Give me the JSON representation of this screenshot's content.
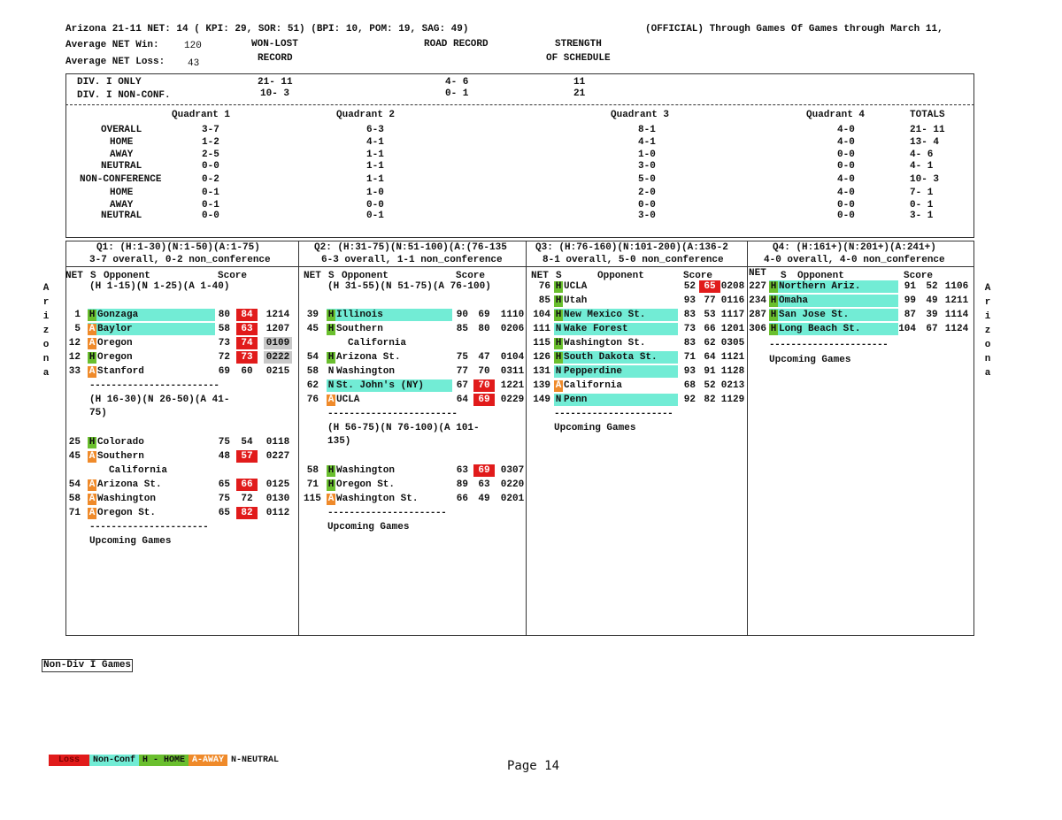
{
  "header": {
    "line1": "Arizona 21-11  NET: 14 ( KPI: 29, SOR: 51)  (BPI: 10, POM: 19,  SAG: 49)",
    "official": "(OFFICIAL) Through Games Of Games through March 11,",
    "avg_win_label": "Average NET Win:",
    "avg_win": "120",
    "avg_loss_label": "Average NET Loss:",
    "avg_loss": "43",
    "won_lost_1": "WON-LOST",
    "won_lost_2": "RECORD",
    "road_record": "ROAD RECORD",
    "sos_1": "STRENGTH",
    "sos_2": "OF SCHEDULE"
  },
  "records": {
    "div1_label": "DIV. I ONLY",
    "div1_wl": "21- 11",
    "div1_road": "4- 6",
    "div1_sos": "11",
    "nonconf_label": "DIV. I NON-CONF.",
    "nonconf_wl": "10- 3",
    "nonconf_road": "0- 1",
    "nonconf_sos": "21"
  },
  "quad_table": {
    "headers": [
      "Quadrant 1",
      "Quadrant 2",
      "Quadrant 3",
      "Quadrant 4",
      "TOTALS"
    ],
    "rows": [
      {
        "label": "OVERALL",
        "q1": "3-7",
        "q2": "6-3",
        "q3": "8-1",
        "q4": "4-0",
        "total": "21- 11"
      },
      {
        "label": "HOME",
        "q1": "1-2",
        "q2": "4-1",
        "q3": "4-1",
        "q4": "4-0",
        "total": "13- 4"
      },
      {
        "label": "AWAY",
        "q1": "2-5",
        "q2": "1-1",
        "q3": "1-0",
        "q4": "0-0",
        "total": "4- 6"
      },
      {
        "label": "NEUTRAL",
        "q1": "0-0",
        "q2": "1-1",
        "q3": "3-0",
        "q4": "0-0",
        "total": "4- 1"
      },
      {
        "label": "NON-CONFERENCE",
        "q1": "0-2",
        "q2": "1-1",
        "q3": "5-0",
        "q4": "4-0",
        "total": "10- 3"
      },
      {
        "label": "HOME",
        "q1": "0-1",
        "q2": "1-0",
        "q3": "2-0",
        "q4": "4-0",
        "total": "7- 1"
      },
      {
        "label": "AWAY",
        "q1": "0-1",
        "q2": "0-0",
        "q3": "0-0",
        "q4": "0-0",
        "total": "0- 1"
      },
      {
        "label": "NEUTRAL",
        "q1": "0-0",
        "q2": "0-1",
        "q3": "3-0",
        "q4": "0-0",
        "total": "3- 1"
      }
    ]
  },
  "columns_header": {
    "net": "NET",
    "s": "S",
    "opponent": "Opponent",
    "score": "Score"
  },
  "q1": {
    "title": "Q1: (H:1-30)(N:1-50)(A:1-75)",
    "summary": "3-7 overall, 0-2 non_conference",
    "sub1": "(H 1-15)(N 1-25)(A 1-40)",
    "sub2a": "(H 16-30)(N 26-50)(A 41-",
    "sub2b": "75)",
    "upcoming": "Upcoming Games",
    "games_a": [
      {
        "net": "1",
        "loc": "H",
        "opp": "Gonzaga",
        "s1": "80",
        "s2": "84",
        "date": "1214",
        "loss": true,
        "nc": true,
        "gray": false
      },
      {
        "net": "5",
        "loc": "A",
        "opp": "Baylor",
        "s1": "58",
        "s2": "63",
        "date": "1207",
        "loss": true,
        "nc": true,
        "gray": false
      },
      {
        "net": "12",
        "loc": "A",
        "opp": "Oregon",
        "s1": "73",
        "s2": "74",
        "date": "0109",
        "loss": true,
        "nc": false,
        "gray": true
      },
      {
        "net": "12",
        "loc": "H",
        "opp": "Oregon",
        "s1": "72",
        "s2": "73",
        "date": "0222",
        "loss": true,
        "nc": false,
        "gray": true
      },
      {
        "net": "33",
        "loc": "A",
        "opp": "Stanford",
        "s1": "69",
        "s2": "60",
        "date": "0215",
        "loss": false,
        "nc": false,
        "gray": false
      }
    ],
    "games_b": [
      {
        "net": "25",
        "loc": "H",
        "opp": "Colorado",
        "s1": "75",
        "s2": "54",
        "date": "0118",
        "loss": false
      },
      {
        "net": "45",
        "loc": "A",
        "opp": "Southern",
        "opp2": "California",
        "s1": "48",
        "s2": "57",
        "date": "0227",
        "loss": true
      },
      {
        "net": "54",
        "loc": "A",
        "opp": "Arizona St.",
        "s1": "65",
        "s2": "66",
        "date": "0125",
        "loss": true
      },
      {
        "net": "58",
        "loc": "A",
        "opp": "Washington",
        "s1": "75",
        "s2": "72",
        "date": "0130",
        "loss": false
      },
      {
        "net": "71",
        "loc": "A",
        "opp": "Oregon St.",
        "s1": "65",
        "s2": "82",
        "date": "0112",
        "loss": true
      }
    ]
  },
  "q2": {
    "title": "Q2: (H:31-75)(N:51-100)(A:(76-135",
    "summary": "6-3 overall, 1-1 non_conference",
    "sub1": "(H 31-55)(N 51-75)(A 76-100)",
    "sub2a": "(H 56-75)(N 76-100)(A 101-",
    "sub2b": "135)",
    "upcoming": "Upcoming Games",
    "games_a": [
      {
        "net": "39",
        "loc": "H",
        "opp": "Illinois",
        "s1": "90",
        "s2": "69",
        "date": "1110",
        "loss": false,
        "nc": true
      },
      {
        "net": "45",
        "loc": "H",
        "opp": "Southern",
        "opp2": "California",
        "s1": "85",
        "s2": "80",
        "date": "0206",
        "loss": false,
        "nc": false
      },
      {
        "net": "54",
        "loc": "H",
        "opp": "Arizona St.",
        "s1": "75",
        "s2": "47",
        "date": "0104",
        "loss": false,
        "nc": false
      },
      {
        "net": "58",
        "loc": "N",
        "opp": "Washington",
        "s1": "77",
        "s2": "70",
        "date": "0311",
        "loss": false,
        "nc": false
      },
      {
        "net": "62",
        "loc": "N",
        "opp": "St. John's (NY)",
        "s1": "67",
        "s2": "70",
        "date": "1221",
        "loss": true,
        "nc": true
      },
      {
        "net": "76",
        "loc": "A",
        "opp": "UCLA",
        "s1": "64",
        "s2": "69",
        "date": "0229",
        "loss": true,
        "nc": false
      }
    ],
    "games_b": [
      {
        "net": "58",
        "loc": "H",
        "opp": "Washington",
        "s1": "63",
        "s2": "69",
        "date": "0307",
        "loss": true
      },
      {
        "net": "71",
        "loc": "H",
        "opp": "Oregon St.",
        "s1": "89",
        "s2": "63",
        "date": "0220",
        "loss": false
      },
      {
        "net": "115",
        "loc": "A",
        "opp": "Washington St.",
        "s1": "66",
        "s2": "49",
        "date": "0201",
        "loss": false
      }
    ]
  },
  "q3": {
    "title": "Q3: (H:76-160)(N:101-200)(A:136-2",
    "summary": "8-1 overall, 5-0 non_conference",
    "upcoming": "Upcoming Games",
    "games": [
      {
        "net": "76",
        "loc": "H",
        "opp": "UCLA",
        "s1": "52",
        "s2": "65",
        "date": "0208",
        "loss": true,
        "nc": false
      },
      {
        "net": "85",
        "loc": "H",
        "opp": "Utah",
        "s1": "93",
        "s2": "77",
        "date": "0116",
        "loss": false,
        "nc": false
      },
      {
        "net": "104",
        "loc": "H",
        "opp": "New Mexico St.",
        "s1": "83",
        "s2": "53",
        "date": "1117",
        "loss": false,
        "nc": true
      },
      {
        "net": "111",
        "loc": "N",
        "opp": "Wake Forest",
        "s1": "73",
        "s2": "66",
        "date": "1201",
        "loss": false,
        "nc": true
      },
      {
        "net": "115",
        "loc": "H",
        "opp": "Washington St.",
        "s1": "83",
        "s2": "62",
        "date": "0305",
        "loss": false,
        "nc": false
      },
      {
        "net": "126",
        "loc": "H",
        "opp": "South Dakota St.",
        "s1": "71",
        "s2": "64",
        "date": "1121",
        "loss": false,
        "nc": true
      },
      {
        "net": "131",
        "loc": "N",
        "opp": "Pepperdine",
        "s1": "93",
        "s2": "91",
        "date": "1128",
        "loss": false,
        "nc": true
      },
      {
        "net": "139",
        "loc": "A",
        "opp": "California",
        "s1": "68",
        "s2": "52",
        "date": "0213",
        "loss": false,
        "nc": false
      },
      {
        "net": "149",
        "loc": "N",
        "opp": "Penn",
        "s1": "92",
        "s2": "82",
        "date": "1129",
        "loss": false,
        "nc": true
      }
    ]
  },
  "q4": {
    "title": "Q4: (H:161+)(N:201+)(A:241+)",
    "summary": "4-0 overall, 4-0 non_conference",
    "upcoming": "Upcoming Games",
    "games": [
      {
        "net": "227",
        "loc": "H",
        "opp": "Northern Ariz.",
        "s1": "91",
        "s2": "52",
        "date": "1106",
        "loss": false,
        "nc": true
      },
      {
        "net": "234",
        "loc": "H",
        "opp": "Omaha",
        "s1": "99",
        "s2": "49",
        "date": "1211",
        "loss": false,
        "nc": true
      },
      {
        "net": "287",
        "loc": "H",
        "opp": "San Jose St.",
        "s1": "87",
        "s2": "39",
        "date": "1114",
        "loss": false,
        "nc": true
      },
      {
        "net": "306",
        "loc": "H",
        "opp": "Long Beach St.",
        "s1": "104",
        "s2": "67",
        "date": "1124",
        "loss": false,
        "nc": true
      }
    ]
  },
  "side_letters": [
    "A",
    "r",
    "i",
    "z",
    "o",
    "n",
    "a"
  ],
  "non_div": "Non-Div I Games",
  "legend": {
    "loss": "Loss",
    "nonconf": "Non-Conf",
    "home": "H - HOME",
    "away": "A-AWAY",
    "neutral": "N-NEUTRAL"
  },
  "page": "Page 14",
  "colors": {
    "loss": "#e11b1b",
    "nonconf": "#72ecd5",
    "home": "#6abf2e",
    "away": "#ef8a2a",
    "conf_loss_gray": "#c8c8c8"
  }
}
